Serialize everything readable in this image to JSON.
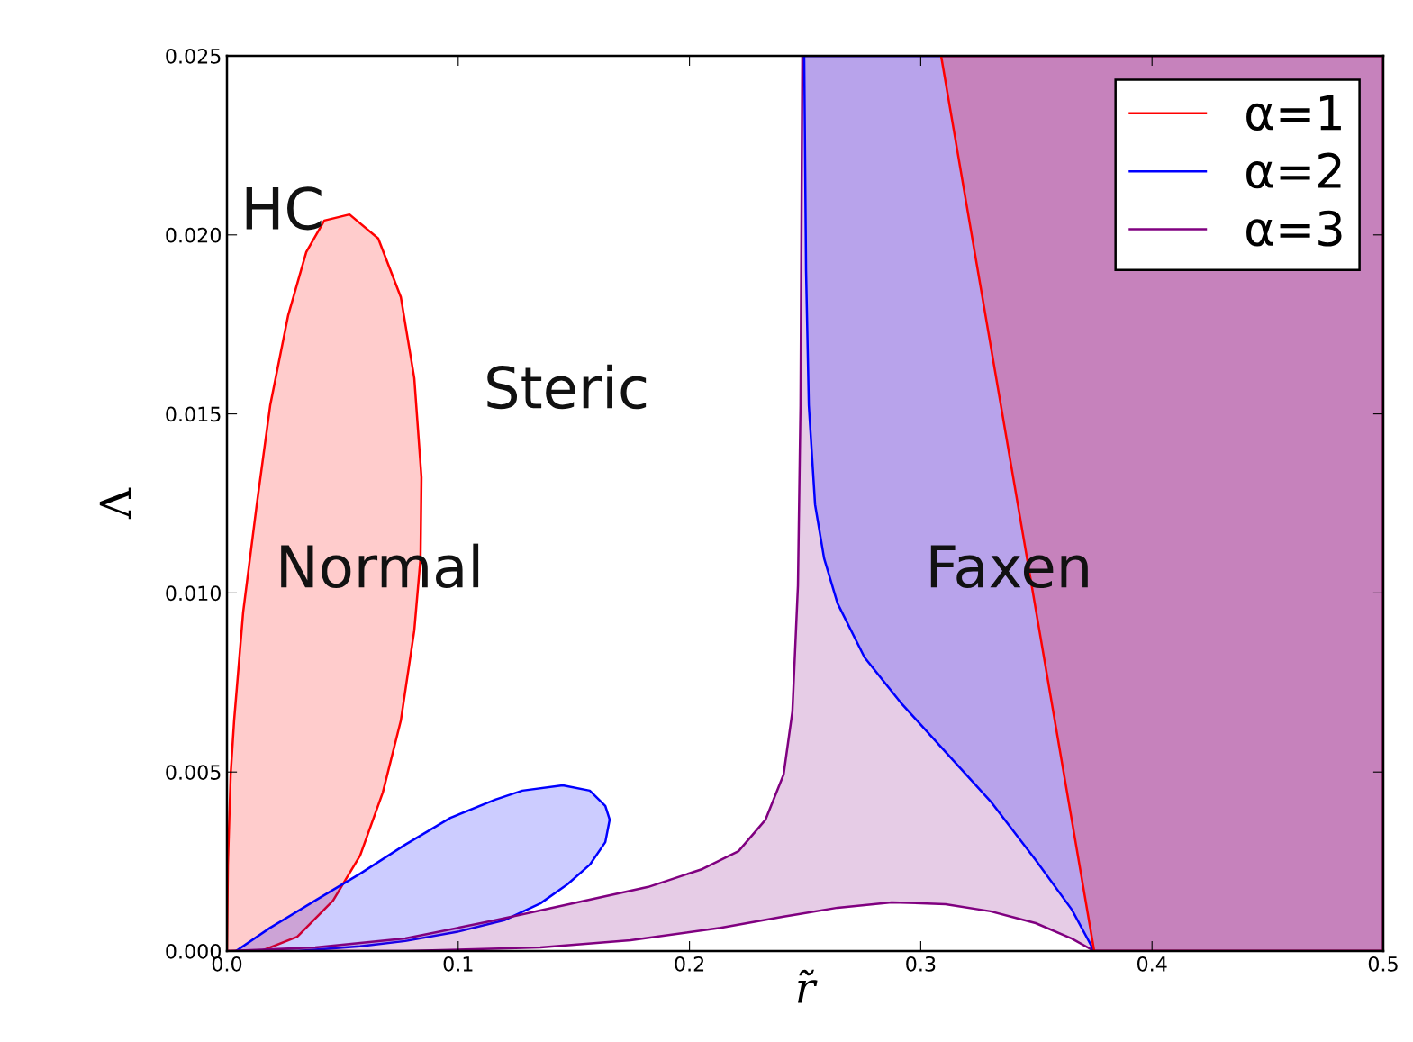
{
  "chart_data": {
    "type": "area",
    "xlabel": "r̃",
    "ylabel": "Λ",
    "xlim": [
      0.0,
      0.5
    ],
    "xticks": [
      {
        "value": 0.0,
        "label": "0.0"
      },
      {
        "value": 0.1,
        "label": "0.1"
      },
      {
        "value": 0.2,
        "label": "0.2"
      },
      {
        "value": 0.3,
        "label": "0.3"
      },
      {
        "value": 0.4,
        "label": "0.4"
      },
      {
        "value": 0.5,
        "label": "0.5"
      }
    ],
    "ylim": [
      0.0,
      0.025
    ],
    "yticks": [
      {
        "value": 0.0,
        "label": "0.000"
      },
      {
        "value": 0.005,
        "label": "0.005"
      },
      {
        "value": 0.01,
        "label": "0.010"
      },
      {
        "value": 0.015,
        "label": "0.015"
      },
      {
        "value": 0.02,
        "label": "0.020"
      },
      {
        "value": 0.025,
        "label": "0.025"
      }
    ],
    "grid": false,
    "legend": "top right",
    "series": [
      {
        "name": "α=1",
        "color": "#ff0000",
        "x": [
          0,
          0.0004,
          0.0016,
          0.0031,
          0.007,
          0.0129,
          0.0187,
          0.0265,
          0.0343,
          0.0421,
          0.053,
          0.0654,
          0.0752,
          0.081,
          0.0841,
          0.0837,
          0.081,
          0.0752,
          0.0674,
          0.0576,
          0.0459,
          0.0304,
          0.0148,
          0
        ],
        "values": [
          0,
          0.00241,
          0.00493,
          0.00644,
          0.00946,
          0.01247,
          0.01524,
          0.01776,
          0.01952,
          0.0204,
          0.02057,
          0.0199,
          0.01826,
          0.016,
          0.01323,
          0.01097,
          0.00895,
          0.00644,
          0.00443,
          0.00267,
          0.00141,
          0.0004,
          0,
          0
        ]
      },
      {
        "name": "α=2",
        "color": "#0000ff",
        "x": [
          0.0039,
          0.0187,
          0.0382,
          0.0576,
          0.0771,
          0.0966,
          0.116,
          0.1277,
          0.1452,
          0.1569,
          0.1636,
          0.1655,
          0.1636,
          0.1569,
          0.1472,
          0.1355,
          0.1199,
          0.1005,
          0.0771,
          0.0576,
          0.0304,
          0.0039
        ],
        "values": [
          0,
          0.00065,
          0.00141,
          0.00216,
          0.00297,
          0.00372,
          0.00423,
          0.00448,
          0.00463,
          0.00448,
          0.00405,
          0.00367,
          0.00304,
          0.00241,
          0.00186,
          0.00133,
          0.00086,
          0.00055,
          0.00028,
          0.00013,
          0,
          0
        ]
      },
      {
        "name": "α=3",
        "color": "#800080",
        "x": [
          0,
          0.0382,
          0.0771,
          0.116,
          0.155,
          0.1822,
          0.2056,
          0.2212,
          0.2329,
          0.2407,
          0.2445,
          0.2469,
          0.248,
          0.2488,
          0.5,
          0.5,
          0.375,
          0.3653,
          0.3497,
          0.3302,
          0.3107,
          0.2874,
          0.264,
          0.2407,
          0.2134,
          0.1745,
          0.1355,
          0.0771,
          0
        ],
        "values": [
          0,
          0.0001,
          0.00035,
          0.00086,
          0.00141,
          0.00179,
          0.00229,
          0.00279,
          0.00367,
          0.00493,
          0.00669,
          0.01021,
          0.01524,
          0.025,
          0.025,
          0,
          0,
          0.00035,
          0.00078,
          0.00111,
          0.00131,
          0.00136,
          0.00121,
          0.00096,
          0.00065,
          0.0003,
          0.0001,
          0,
          0
        ]
      },
      {
        "color": "#0000ff",
        "x": [
          0.2496,
          0.2504,
          0.2516,
          0.2543,
          0.2582,
          0.264,
          0.2757,
          0.2913,
          0.3107,
          0.3302,
          0.3497,
          0.3653,
          0.375,
          0.5,
          0.5
        ],
        "values": [
          0.025,
          0.019,
          0.01524,
          0.01247,
          0.01097,
          0.00971,
          0.0082,
          0.00694,
          0.00556,
          0.00418,
          0.00254,
          0.00116,
          0,
          0,
          0.025
        ]
      },
      {
        "color": "#ff0000",
        "x": [
          0.3088,
          0.375,
          0.5,
          0.5
        ],
        "values": [
          0.025,
          0,
          0,
          0.025
        ]
      }
    ],
    "annotations": [
      "HC",
      "Steric",
      "Normal",
      "Faxen"
    ]
  }
}
